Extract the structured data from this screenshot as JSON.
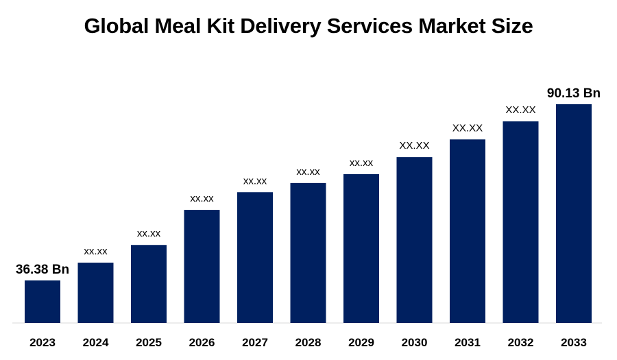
{
  "chart_data": {
    "type": "bar",
    "title": "Global Meal Kit Delivery Services Market Size",
    "xlabel": "",
    "ylabel": "",
    "categories": [
      "2023",
      "2024",
      "2025",
      "2026",
      "2027",
      "2028",
      "2029",
      "2030",
      "2031",
      "2032",
      "2033"
    ],
    "values": [
      36.38,
      41.8,
      47.2,
      57.9,
      63.3,
      66.1,
      68.8,
      74.0,
      79.4,
      84.9,
      90.13
    ],
    "data_labels": [
      "36.38 Bn",
      "xx.xx",
      "xx.xx",
      "xx.xx",
      "xx.xx",
      "xx.xx",
      "xx.xx",
      "XX.XX",
      "XX.XX",
      "XX.XX",
      "90.13 Bn"
    ],
    "ylim": [
      23.4,
      95
    ],
    "grid": false,
    "legend": "none",
    "bar_color": "#002060"
  }
}
